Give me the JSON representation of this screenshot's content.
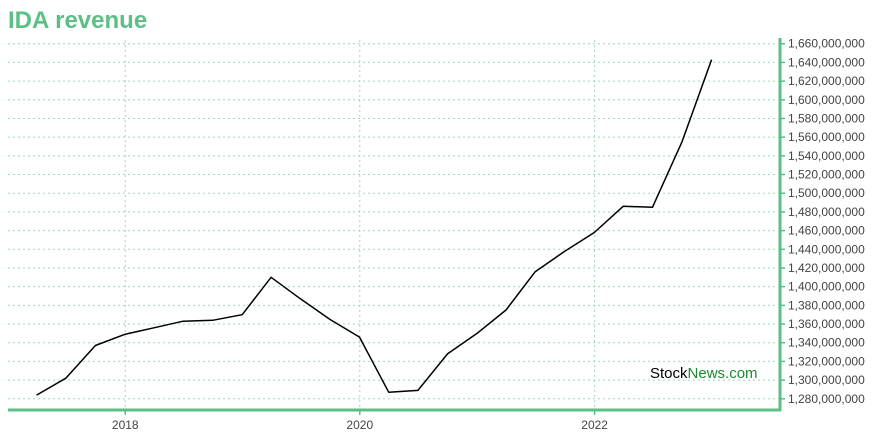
{
  "chart_data": {
    "type": "line",
    "title": "IDA revenue",
    "x_ticks": [
      "2018",
      "2020",
      "2022"
    ],
    "y_ticks": [
      1280000000,
      1300000000,
      1320000000,
      1340000000,
      1360000000,
      1380000000,
      1400000000,
      1420000000,
      1440000000,
      1460000000,
      1480000000,
      1500000000,
      1520000000,
      1540000000,
      1560000000,
      1580000000,
      1600000000,
      1620000000,
      1640000000,
      1660000000
    ],
    "y_tick_labels": [
      "1,280,000,000",
      "1,300,000,000",
      "1,320,000,000",
      "1,340,000,000",
      "1,360,000,000",
      "1,380,000,000",
      "1,400,000,000",
      "1,420,000,000",
      "1,440,000,000",
      "1,460,000,000",
      "1,480,000,000",
      "1,500,000,000",
      "1,520,000,000",
      "1,540,000,000",
      "1,560,000,000",
      "1,580,000,000",
      "1,600,000,000",
      "1,620,000,000",
      "1,640,000,000",
      "1,660,000,000"
    ],
    "ylim": [
      1268000000,
      1664000000
    ],
    "xlim": [
      "2017-01-01",
      "2023-08-01"
    ],
    "grid": true,
    "y_axis_position": "right",
    "colors": {
      "line": "#000000",
      "accent": "#5cbf85",
      "grid": "#9fd9b5"
    },
    "series": [
      {
        "x": [
          "2017-03-31",
          "2017-06-30",
          "2017-09-30",
          "2017-12-31",
          "2018-03-31",
          "2018-06-30",
          "2018-09-30",
          "2018-12-31",
          "2019-03-31",
          "2019-06-30",
          "2019-09-30",
          "2019-12-31",
          "2020-03-31",
          "2020-06-30",
          "2020-09-30",
          "2020-12-31",
          "2021-03-31",
          "2021-06-30",
          "2021-09-30",
          "2021-12-31",
          "2022-03-31",
          "2022-06-30",
          "2022-09-30",
          "2022-12-31"
        ],
        "values": [
          1284000000,
          1302000000,
          1337000000,
          1349000000,
          1356000000,
          1363000000,
          1364000000,
          1370000000,
          1410000000,
          1387000000,
          1365000000,
          1346000000,
          1287000000,
          1289000000,
          1328000000,
          1350000000,
          1375000000,
          1416000000,
          1438000000,
          1458000000,
          1486000000,
          1485000000,
          1555000000,
          1643000000
        ]
      }
    ]
  },
  "watermark": {
    "part1": "Stock",
    "part2": "News.com"
  }
}
